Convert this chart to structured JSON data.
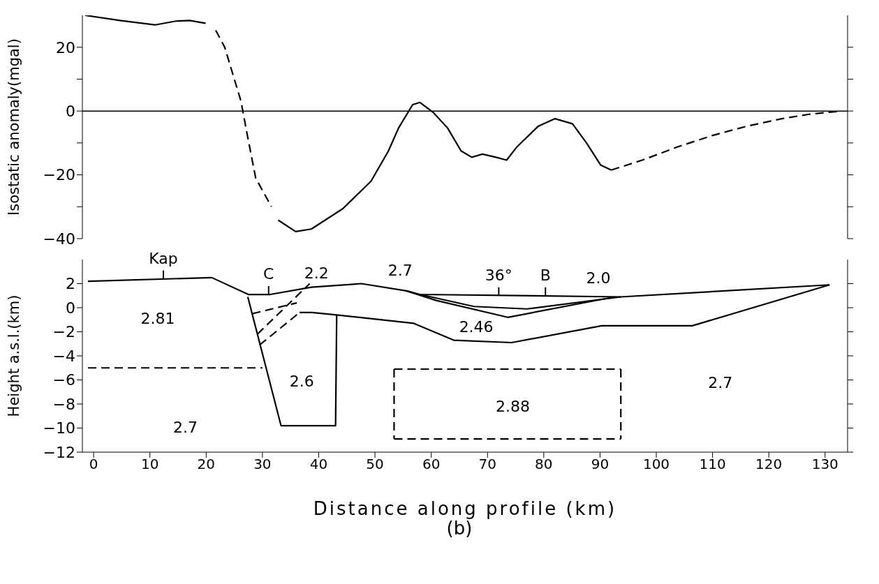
{
  "chart_data": [
    {
      "type": "line",
      "ylabel": "Isostatic anomaly(mgal)",
      "xlim": [
        -2,
        134
      ],
      "ylim": [
        -40,
        30
      ],
      "yticks": [
        -40,
        {
          "value": -30,
          "label": null
        },
        -20,
        {
          "value": -10,
          "label": null
        },
        0,
        {
          "value": 10,
          "label": null
        },
        20
      ],
      "tick_labels": "y",
      "grid": false,
      "ref_lines": [
        {
          "axis": "y",
          "value": 0,
          "color": "#000000"
        }
      ],
      "series": [
        {
          "color": "#000000",
          "line_style": "solid",
          "x": [
            -1.5,
            4.7,
            10.9,
            14.6,
            17.1,
            19.9
          ],
          "values": [
            30,
            28.4,
            27,
            28.2,
            28.4,
            27.5
          ]
        },
        {
          "color": "#000000",
          "line_style": "dashed",
          "x": [
            21.7,
            23.3,
            26.2,
            27.2,
            28.8,
            31.6
          ],
          "values": [
            25.3,
            20,
            3,
            -6.5,
            -21,
            -30
          ]
        },
        {
          "color": "#000000",
          "line_style": "solid",
          "x": [
            32.8,
            35.9,
            38.7,
            44.3,
            49.3,
            52.4,
            54.2,
            56.7,
            58,
            60.4,
            62.9,
            65.3,
            67.2,
            69.1,
            71.5,
            73.4,
            75.2,
            79,
            82,
            85.1,
            87.6,
            90.1,
            92
          ],
          "values": [
            -34.2,
            -37.8,
            -37,
            -30.6,
            -22,
            -12.5,
            -5.3,
            2,
            2.7,
            -0.5,
            -5.3,
            -12.5,
            -14.5,
            -13.5,
            -14.5,
            -15.4,
            -11.3,
            -4.8,
            -2.4,
            -4,
            -10,
            -16.9,
            -18.5
          ]
        },
        {
          "color": "#000000",
          "line_style": "dashed",
          "x": [
            92,
            97.5,
            103.7,
            109.9,
            116,
            122.3,
            127.2,
            133
          ],
          "values": [
            -18.5,
            -15.4,
            -11.3,
            -7.7,
            -4.8,
            -2.4,
            -1,
            0
          ]
        }
      ]
    },
    {
      "type": "line",
      "xlabel": "Distance along profile (km)",
      "ylabel": "Height a.s.l.(km)",
      "xlim": [
        -2,
        134
      ],
      "ylim": [
        -12,
        4
      ],
      "xticks": [
        0,
        10,
        20,
        30,
        40,
        50,
        60,
        70,
        80,
        90,
        100,
        110,
        120,
        130
      ],
      "yticks": [
        2,
        0,
        -2,
        -4,
        -6,
        -8,
        -10,
        -12
      ],
      "grid": false,
      "series": [
        {
          "color": "#000000",
          "line_style": "solid",
          "x": [
            -1,
            21,
            27.5,
            31.4,
            38.7,
            47.6,
            55.6,
            58,
            93.7,
            130.8
          ],
          "values": [
            2.2,
            2.5,
            1.1,
            1.1,
            1.7,
            2.0,
            1.4,
            1.1,
            0.9,
            1.9
          ]
        },
        {
          "color": "#000000",
          "line_style": "solid",
          "x": [
            58,
            67.6,
            77,
            93.7
          ],
          "values": [
            1.1,
            0.1,
            -0.1,
            0.9
          ]
        },
        {
          "color": "#000000",
          "line_style": "solid",
          "x": [
            55.6,
            60.9,
            73.6,
            92.6
          ],
          "values": [
            1.4,
            0.6,
            -0.8,
            0.9
          ]
        },
        {
          "color": "#000000",
          "line_style": "solid",
          "x": [
            36.6,
            38.8,
            43.2,
            56.9,
            64,
            74.3,
            90.3,
            106.4,
            130.8
          ],
          "values": [
            -0.4,
            -0.4,
            -0.6,
            -1.3,
            -2.7,
            -2.9,
            -1.5,
            -1.5,
            1.9
          ]
        },
        {
          "color": "#000000",
          "line_style": "solid",
          "x": [
            27.4,
            33.3,
            43.0,
            43.2
          ],
          "values": [
            0.9,
            -9.8,
            -9.8,
            -0.6
          ]
        },
        {
          "color": "#000000",
          "line_style": "dashed",
          "x": [
            28.2,
            36.1
          ],
          "values": [
            -0.5,
            0.4
          ]
        },
        {
          "color": "#000000",
          "line_style": "dashed",
          "x": [
            29.1,
            38.4
          ],
          "values": [
            -2.2,
            2.0
          ]
        },
        {
          "color": "#000000",
          "line_style": "dashed",
          "x": [
            29.5,
            36.6
          ],
          "values": [
            -3.1,
            -0.4
          ]
        },
        {
          "color": "#000000",
          "line_style": "dashed",
          "x": [
            -1,
            30
          ],
          "values": [
            -5,
            -5
          ]
        },
        {
          "color": "#000000",
          "line_style": "dashed",
          "x": [
            53.4,
            93.7
          ],
          "values": [
            -5.1,
            -5.1
          ]
        },
        {
          "color": "#000000",
          "line_style": "dashed",
          "x": [
            53.4,
            93.7
          ],
          "values": [
            -10.9,
            -10.9
          ]
        },
        {
          "color": "#000000",
          "line_style": "dashed",
          "x": [
            53.4,
            53.4
          ],
          "values": [
            -5.1,
            -10.9
          ]
        },
        {
          "color": "#000000",
          "line_style": "dashed",
          "x": [
            93.7,
            93.7
          ],
          "values": [
            -5.1,
            -10.9
          ]
        }
      ],
      "annotations": [
        {
          "text": "Kap",
          "x": 12.4,
          "y": 2.4
        },
        {
          "text": "C",
          "x": 31.1,
          "y": 1.1
        },
        {
          "text": "36°",
          "x": 72,
          "y": 1.0
        },
        {
          "text": "B",
          "x": 80.3,
          "y": 1.0
        },
        "2.2",
        "2.7",
        "2.0",
        "2.81",
        "2.46",
        "2.6",
        "2.7",
        "2.88",
        "2.7",
        "(b)"
      ]
    }
  ]
}
